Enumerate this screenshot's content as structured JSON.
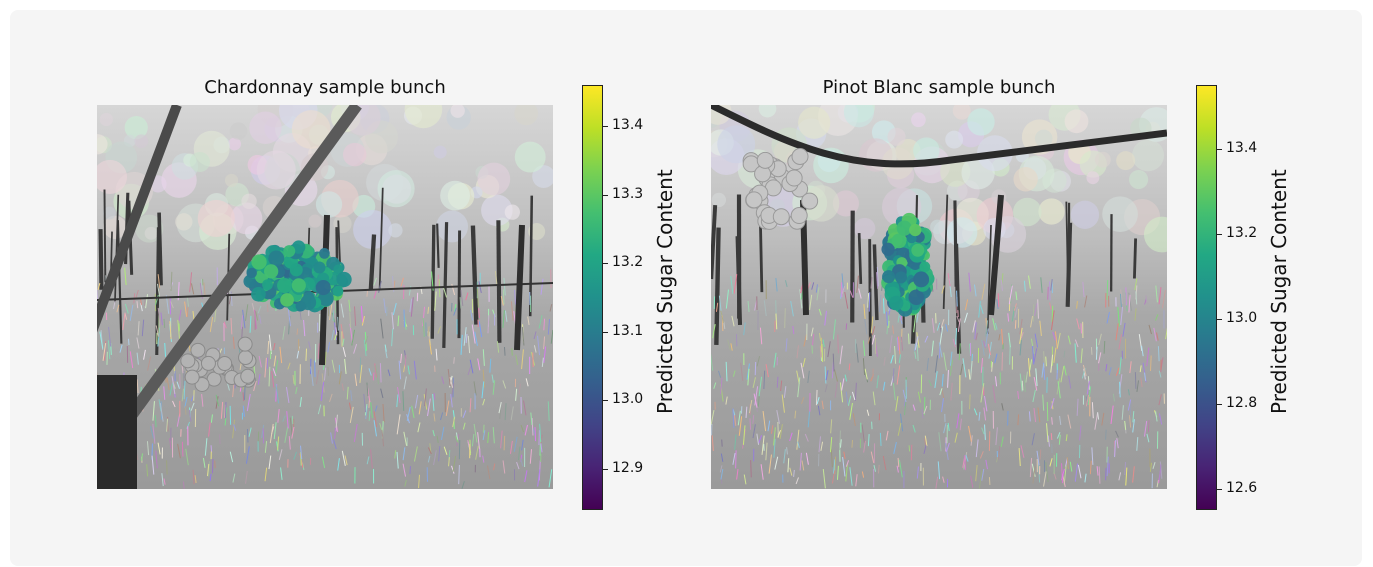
{
  "colormap": "viridis",
  "chart_data": [
    {
      "type": "heatmap",
      "title": "Chardonnay sample bunch",
      "colorbar": {
        "label": "Predicted Sugar Content",
        "range": [
          12.84,
          13.46
        ],
        "ticks": [
          12.9,
          13.0,
          13.1,
          13.2,
          13.3,
          13.4
        ],
        "tick_labels": [
          "12.9",
          "13.0",
          "13.1",
          "13.2",
          "13.3",
          "13.4"
        ]
      },
      "overlay_value_range": [
        13.05,
        13.3
      ]
    },
    {
      "type": "heatmap",
      "title": "Pinot Blanc sample bunch",
      "colorbar": {
        "label": "Predicted Sugar Content",
        "range": [
          12.55,
          13.55
        ],
        "ticks": [
          12.6,
          12.8,
          13.0,
          13.2,
          13.4
        ],
        "tick_labels": [
          "12.6",
          "12.8",
          "13.0",
          "13.2",
          "13.4"
        ]
      },
      "overlay_value_range": [
        12.9,
        13.3
      ]
    }
  ]
}
